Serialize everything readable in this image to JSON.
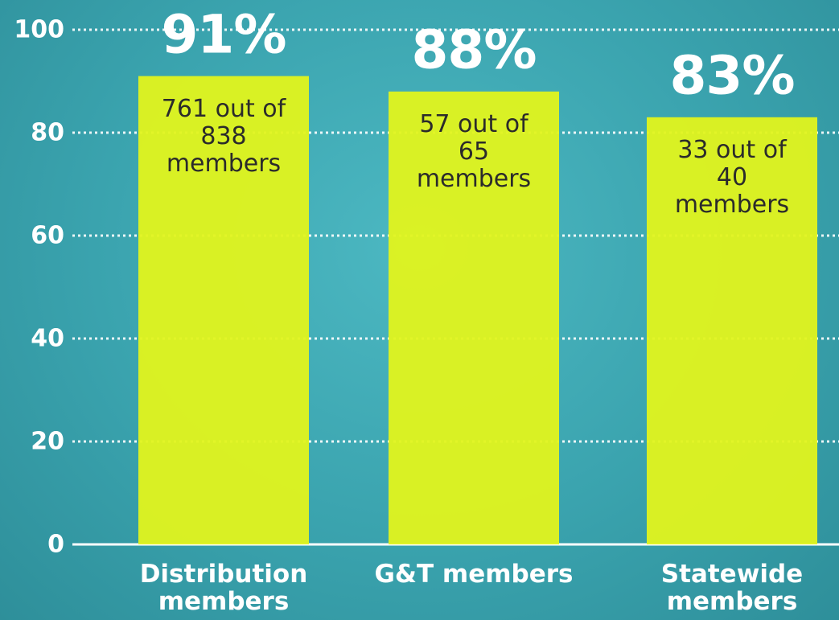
{
  "chart_data": {
    "type": "bar",
    "categories": [
      "Distribution members",
      "G&T members",
      "Statewide members"
    ],
    "values": [
      91,
      88,
      83
    ],
    "value_labels": [
      "91%",
      "88%",
      "83%"
    ],
    "annotations": [
      "761 out of 838 members",
      "57 out of 65 members",
      "33 out of 40 members"
    ],
    "color": "#e2f41c",
    "ylim": [
      0,
      100
    ],
    "yticks": [
      0,
      20,
      40,
      60,
      80,
      100
    ],
    "grid": true
  }
}
